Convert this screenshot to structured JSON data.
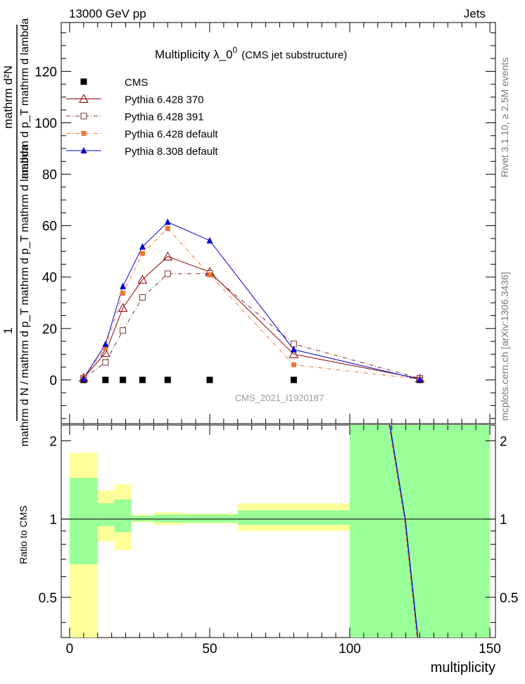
{
  "header": {
    "energy": "13000 GeV pp",
    "category": "Jets",
    "plot_title": "Multiplicity  λ_0",
    "plot_title_sup": "0",
    "plot_subtitle": "(CMS jet substructure)",
    "analysis_id": "CMS_2021_I1920187",
    "rivet_label": "Rivet 3.1.10, ≥ 2.5M events",
    "mcplots_label": "mcplots.cern.ch [arXiv:1306.3436]"
  },
  "main_plot": {
    "ylabel_numerator": "1",
    "ylabel_fraction_top": "mathrm d²N",
    "ylabel_fraction_top_b": "mathrm d p_T mathrm d lambda",
    "ylabel_fraction_bottom": "mathrm d N / mathrm d p_T mathrm d p_T mathrm d lambda"
  },
  "ratio_plot": {
    "ylabel": "Ratio to CMS"
  },
  "chart_data": {
    "type": "line",
    "xlabel": "multiplicity",
    "xlim": [
      -3,
      152
    ],
    "ylim": [
      -17,
      139
    ],
    "x_ticks": [
      0,
      50,
      100,
      150
    ],
    "y_ticks": [
      0,
      20,
      40,
      60,
      80,
      100,
      120
    ],
    "ratio_ylim": [
      0.35,
      2.3
    ],
    "ratio_ticks": [
      0.5,
      1,
      2
    ],
    "legend_position": "top-left",
    "colors": {
      "cms": "#000000",
      "py6_370": "#8b0000",
      "py6_391": "#7a3030",
      "py6_default": "#ee7733",
      "py8_default": "#0000cc",
      "band_stat": "#99ff99",
      "band_total": "#ffff99"
    },
    "series": [
      {
        "name": "CMS",
        "marker": "square-filled",
        "x": [
          5,
          12.8,
          19,
          26,
          35,
          50,
          80,
          125
        ],
        "y": [
          0,
          0,
          0,
          0,
          0,
          0,
          0,
          0
        ]
      },
      {
        "name": "Pythia 6.428 370",
        "marker": "triangle-open",
        "x": [
          5,
          12.8,
          19,
          26,
          35,
          50,
          80,
          125
        ],
        "y": [
          0.8,
          10.5,
          28,
          39,
          48,
          42,
          10,
          0.5
        ]
      },
      {
        "name": "Pythia 6.428 391",
        "marker": "square-open",
        "x": [
          5,
          12.8,
          19,
          26,
          35,
          50,
          80,
          125
        ],
        "y": [
          0.7,
          6.8,
          19.2,
          32.1,
          41.3,
          41.4,
          14,
          0.6
        ]
      },
      {
        "name": "Pythia 6.428 default",
        "marker": "square-filled-small",
        "x": [
          5,
          12.8,
          19,
          26,
          35,
          50,
          80,
          125
        ],
        "y": [
          0.9,
          12.5,
          33.7,
          49.2,
          58.9,
          40.9,
          5.9,
          0.3
        ]
      },
      {
        "name": "Pythia 8.308 default",
        "marker": "triangle-filled",
        "x": [
          5,
          12.8,
          19,
          26,
          35,
          50,
          80,
          125
        ],
        "y": [
          0.6,
          13.9,
          36.4,
          51.8,
          61.4,
          54.2,
          11.8,
          0.2
        ]
      }
    ],
    "ratio_bands": [
      {
        "x0": 0,
        "x1": 10,
        "total": [
          0.35,
          1.8
        ],
        "stat": [
          0.67,
          1.44
        ]
      },
      {
        "x0": 10,
        "x1": 16,
        "total": [
          0.82,
          1.29
        ],
        "stat": [
          0.94,
          1.15
        ]
      },
      {
        "x0": 16,
        "x1": 22,
        "total": [
          0.76,
          1.36
        ],
        "stat": [
          0.89,
          1.19
        ]
      },
      {
        "x0": 22,
        "x1": 30,
        "total": [
          0.97,
          1.04
        ],
        "stat": [
          0.98,
          1.03
        ]
      },
      {
        "x0": 30,
        "x1": 40,
        "total": [
          0.95,
          1.06
        ],
        "stat": [
          0.97,
          1.04
        ]
      },
      {
        "x0": 40,
        "x1": 60,
        "total": [
          0.96,
          1.05
        ],
        "stat": [
          0.97,
          1.04
        ]
      },
      {
        "x0": 60,
        "x1": 100,
        "total": [
          0.9,
          1.15
        ],
        "stat": [
          0.95,
          1.08
        ]
      },
      {
        "x0": 100,
        "x1": 150,
        "total": [
          0.35,
          2.3
        ],
        "stat": [
          0.35,
          2.3
        ]
      }
    ],
    "ratio_lines": [
      {
        "name": "Pythia 6.428 default",
        "points": [
          [
            114,
            2.3
          ],
          [
            119.5,
            1
          ],
          [
            124,
            0.35
          ]
        ]
      },
      {
        "name": "Pythia 8.308 default",
        "points": [
          [
            114.3,
            2.3
          ],
          [
            119.8,
            1
          ],
          [
            124.3,
            0.35
          ]
        ]
      }
    ]
  }
}
